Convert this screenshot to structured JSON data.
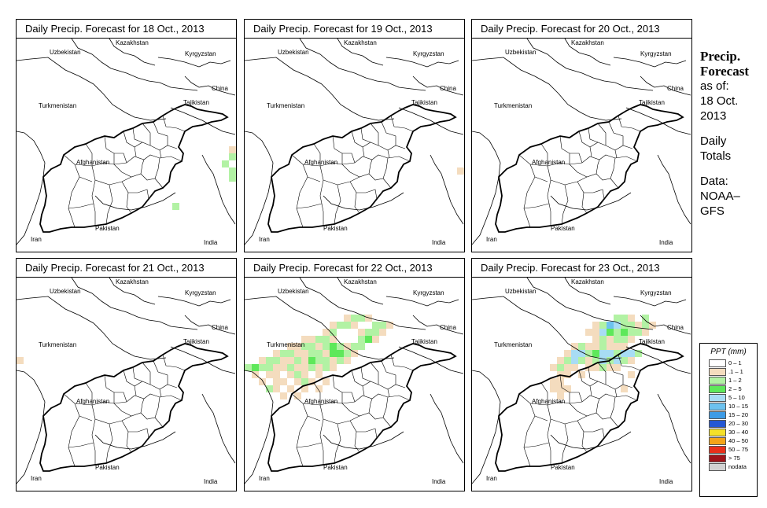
{
  "colors": {
    "c0_1": "#ffffff",
    "c1_1": "#f4dcbe",
    "c1_2": "#b2f2a4",
    "c2_5": "#5ee85a",
    "c5_10": "#a8dcf4",
    "c10_15": "#6cc2ef",
    "c15_20": "#3d9be6",
    "c20_30": "#2457d3",
    "c30_40": "#f4e028",
    "c40_50": "#f4a418",
    "c50_75": "#e8301a",
    "c75": "#a0141a",
    "nodata": "#d2d2d2"
  },
  "countries": [
    "Uzbekistan",
    "Kazakhstan",
    "Kyrgyzstan",
    "China",
    "Turkmenistan",
    "Tajikistan",
    "Afghanistan",
    "Iran",
    "Pakistan",
    "India"
  ],
  "panels": [
    {
      "title": "Daily Precip. Forecast for  18 Oct., 2013",
      "cells": [
        {
          "col": 30,
          "row": 11,
          "c": "c1_1"
        },
        {
          "col": 31,
          "row": 11,
          "c": "c1_2"
        },
        {
          "col": 30,
          "row": 12,
          "c": "c1_2"
        },
        {
          "col": 31,
          "row": 12,
          "c": "c1_1"
        },
        {
          "col": 29,
          "row": 13,
          "c": "c1_2"
        },
        {
          "col": 30,
          "row": 14,
          "c": "c1_2"
        },
        {
          "col": 30,
          "row": 15,
          "c": "c1_2"
        },
        {
          "col": 22,
          "row": 19,
          "c": "c1_2"
        }
      ]
    },
    {
      "title": "Daily Precip. Forecast for  19 Oct., 2013",
      "cells": [
        {
          "col": 30,
          "row": 14,
          "c": "c1_1"
        }
      ]
    },
    {
      "title": "Daily Precip. Forecast for  20 Oct., 2013",
      "cells": []
    },
    {
      "title": "Daily Precip. Forecast for  21 Oct., 2013",
      "cells": [
        {
          "col": 0,
          "row": 7,
          "c": "c1_1"
        }
      ]
    },
    {
      "title": "Daily Precip. Forecast for  22 Oct., 2013",
      "cells": [
        {
          "col": 14,
          "row": 1,
          "c": "c1_1"
        },
        {
          "col": 15,
          "row": 1,
          "c": "c1_2"
        },
        {
          "col": 16,
          "row": 1,
          "c": "c1_2"
        },
        {
          "col": 17,
          "row": 1,
          "c": "c1_1"
        },
        {
          "col": 12,
          "row": 2,
          "c": "c1_1"
        },
        {
          "col": 13,
          "row": 2,
          "c": "c1_2"
        },
        {
          "col": 14,
          "row": 2,
          "c": "c1_2"
        },
        {
          "col": 15,
          "row": 2,
          "c": "c1_1"
        },
        {
          "col": 18,
          "row": 2,
          "c": "c1_2"
        },
        {
          "col": 19,
          "row": 2,
          "c": "c1_2"
        },
        {
          "col": 20,
          "row": 2,
          "c": "c1_1"
        },
        {
          "col": 11,
          "row": 3,
          "c": "c1_1"
        },
        {
          "col": 12,
          "row": 3,
          "c": "c1_2"
        },
        {
          "col": 16,
          "row": 3,
          "c": "c1_1"
        },
        {
          "col": 17,
          "row": 3,
          "c": "c1_2"
        },
        {
          "col": 18,
          "row": 3,
          "c": "c1_2"
        },
        {
          "col": 19,
          "row": 3,
          "c": "c1_1"
        },
        {
          "col": 8,
          "row": 4,
          "c": "c1_1"
        },
        {
          "col": 9,
          "row": 4,
          "c": "c1_1"
        },
        {
          "col": 10,
          "row": 4,
          "c": "c1_2"
        },
        {
          "col": 11,
          "row": 4,
          "c": "c1_2"
        },
        {
          "col": 12,
          "row": 4,
          "c": "c1_1"
        },
        {
          "col": 16,
          "row": 4,
          "c": "c1_2"
        },
        {
          "col": 17,
          "row": 4,
          "c": "c2_5"
        },
        {
          "col": 18,
          "row": 4,
          "c": "c1_1"
        },
        {
          "col": 6,
          "row": 5,
          "c": "c1_1"
        },
        {
          "col": 7,
          "row": 5,
          "c": "c1_1"
        },
        {
          "col": 8,
          "row": 5,
          "c": "c1_2"
        },
        {
          "col": 9,
          "row": 5,
          "c": "c1_2"
        },
        {
          "col": 10,
          "row": 5,
          "c": "c1_1"
        },
        {
          "col": 11,
          "row": 5,
          "c": "c1_2"
        },
        {
          "col": 12,
          "row": 5,
          "c": "c2_5"
        },
        {
          "col": 13,
          "row": 5,
          "c": "c1_2"
        },
        {
          "col": 14,
          "row": 5,
          "c": "c1_1"
        },
        {
          "col": 15,
          "row": 5,
          "c": "c1_2"
        },
        {
          "col": 16,
          "row": 5,
          "c": "c1_2"
        },
        {
          "col": 4,
          "row": 6,
          "c": "c1_1"
        },
        {
          "col": 5,
          "row": 6,
          "c": "c1_2"
        },
        {
          "col": 6,
          "row": 6,
          "c": "c1_2"
        },
        {
          "col": 7,
          "row": 6,
          "c": "c1_1"
        },
        {
          "col": 8,
          "row": 6,
          "c": "c1_1"
        },
        {
          "col": 9,
          "row": 6,
          "c": "c1_2"
        },
        {
          "col": 10,
          "row": 6,
          "c": "c1_2"
        },
        {
          "col": 11,
          "row": 6,
          "c": "c1_1"
        },
        {
          "col": 12,
          "row": 6,
          "c": "c2_5"
        },
        {
          "col": 13,
          "row": 6,
          "c": "c2_5"
        },
        {
          "col": 14,
          "row": 6,
          "c": "c1_2"
        },
        {
          "col": 15,
          "row": 6,
          "c": "c1_1"
        },
        {
          "col": 2,
          "row": 7,
          "c": "c1_1"
        },
        {
          "col": 3,
          "row": 7,
          "c": "c1_2"
        },
        {
          "col": 4,
          "row": 7,
          "c": "c1_2"
        },
        {
          "col": 5,
          "row": 7,
          "c": "c1_1"
        },
        {
          "col": 6,
          "row": 7,
          "c": "c1_1"
        },
        {
          "col": 7,
          "row": 7,
          "c": "c1_2"
        },
        {
          "col": 8,
          "row": 7,
          "c": "c1_1"
        },
        {
          "col": 9,
          "row": 7,
          "c": "c2_5"
        },
        {
          "col": 10,
          "row": 7,
          "c": "c1_2"
        },
        {
          "col": 11,
          "row": 7,
          "c": "c1_2"
        },
        {
          "col": 12,
          "row": 7,
          "c": "c1_1"
        },
        {
          "col": 13,
          "row": 7,
          "c": "c1_2"
        },
        {
          "col": 14,
          "row": 7,
          "c": "c1_1"
        },
        {
          "col": 0,
          "row": 8,
          "c": "c1_2"
        },
        {
          "col": 1,
          "row": 8,
          "c": "c2_5"
        },
        {
          "col": 2,
          "row": 8,
          "c": "c1_2"
        },
        {
          "col": 3,
          "row": 8,
          "c": "c1_2"
        },
        {
          "col": 4,
          "row": 8,
          "c": "c1_1"
        },
        {
          "col": 5,
          "row": 8,
          "c": "c1_1"
        },
        {
          "col": 6,
          "row": 8,
          "c": "c1_2"
        },
        {
          "col": 7,
          "row": 8,
          "c": "c1_1"
        },
        {
          "col": 8,
          "row": 8,
          "c": "c1_1"
        },
        {
          "col": 9,
          "row": 8,
          "c": "c1_2"
        },
        {
          "col": 10,
          "row": 8,
          "c": "c1_1"
        },
        {
          "col": 11,
          "row": 8,
          "c": "c1_2"
        },
        {
          "col": 12,
          "row": 8,
          "c": "c1_1"
        },
        {
          "col": 1,
          "row": 9,
          "c": "c1_1"
        },
        {
          "col": 3,
          "row": 9,
          "c": "c1_1"
        },
        {
          "col": 4,
          "row": 9,
          "c": "c1_1"
        },
        {
          "col": 6,
          "row": 9,
          "c": "c1_1"
        },
        {
          "col": 7,
          "row": 9,
          "c": "c1_2"
        },
        {
          "col": 8,
          "row": 9,
          "c": "c1_1"
        },
        {
          "col": 10,
          "row": 9,
          "c": "c1_1"
        },
        {
          "col": 2,
          "row": 10,
          "c": "c1_1"
        },
        {
          "col": 4,
          "row": 10,
          "c": "c1_1"
        },
        {
          "col": 5,
          "row": 10,
          "c": "c1_1"
        },
        {
          "col": 7,
          "row": 10,
          "c": "c1_1"
        },
        {
          "col": 8,
          "row": 10,
          "c": "c1_2"
        },
        {
          "col": 9,
          "row": 10,
          "c": "c1_1"
        },
        {
          "col": 11,
          "row": 10,
          "c": "c1_1"
        },
        {
          "col": 3,
          "row": 11,
          "c": "c1_2"
        },
        {
          "col": 4,
          "row": 11,
          "c": "c1_1"
        },
        {
          "col": 6,
          "row": 11,
          "c": "c1_1"
        },
        {
          "col": 8,
          "row": 11,
          "c": "c1_1"
        },
        {
          "col": 10,
          "row": 11,
          "c": "c1_1"
        },
        {
          "col": 5,
          "row": 12,
          "c": "c1_1"
        },
        {
          "col": 7,
          "row": 12,
          "c": "c1_1"
        }
      ]
    },
    {
      "title": "Daily Precip. Forecast for  23 Oct., 2013",
      "cells": [
        {
          "col": 20,
          "row": 1,
          "c": "c1_2"
        },
        {
          "col": 21,
          "row": 1,
          "c": "c1_2"
        },
        {
          "col": 22,
          "row": 1,
          "c": "c1_1"
        },
        {
          "col": 24,
          "row": 1,
          "c": "c1_2"
        },
        {
          "col": 17,
          "row": 2,
          "c": "c1_1"
        },
        {
          "col": 18,
          "row": 2,
          "c": "c1_2"
        },
        {
          "col": 19,
          "row": 2,
          "c": "c10_15"
        },
        {
          "col": 20,
          "row": 2,
          "c": "c5_10"
        },
        {
          "col": 21,
          "row": 2,
          "c": "c1_2"
        },
        {
          "col": 22,
          "row": 2,
          "c": "c1_2"
        },
        {
          "col": 23,
          "row": 2,
          "c": "c1_1"
        },
        {
          "col": 24,
          "row": 2,
          "c": "c1_2"
        },
        {
          "col": 25,
          "row": 2,
          "c": "c1_1"
        },
        {
          "col": 16,
          "row": 3,
          "c": "c1_1"
        },
        {
          "col": 17,
          "row": 3,
          "c": "c1_1"
        },
        {
          "col": 18,
          "row": 3,
          "c": "c5_10"
        },
        {
          "col": 19,
          "row": 3,
          "c": "c2_5"
        },
        {
          "col": 20,
          "row": 3,
          "c": "c1_2"
        },
        {
          "col": 21,
          "row": 3,
          "c": "c2_5"
        },
        {
          "col": 22,
          "row": 3,
          "c": "c1_2"
        },
        {
          "col": 23,
          "row": 3,
          "c": "c1_2"
        },
        {
          "col": 24,
          "row": 3,
          "c": "c1_1"
        },
        {
          "col": 17,
          "row": 4,
          "c": "c1_1"
        },
        {
          "col": 18,
          "row": 4,
          "c": "c1_2"
        },
        {
          "col": 19,
          "row": 4,
          "c": "c1_1"
        },
        {
          "col": 20,
          "row": 4,
          "c": "c1_2"
        },
        {
          "col": 21,
          "row": 4,
          "c": "c1_2"
        },
        {
          "col": 22,
          "row": 4,
          "c": "c1_1"
        },
        {
          "col": 14,
          "row": 5,
          "c": "c1_1"
        },
        {
          "col": 15,
          "row": 5,
          "c": "c1_2"
        },
        {
          "col": 16,
          "row": 5,
          "c": "c1_1"
        },
        {
          "col": 17,
          "row": 5,
          "c": "c1_1"
        },
        {
          "col": 18,
          "row": 5,
          "c": "c1_2"
        },
        {
          "col": 19,
          "row": 5,
          "c": "c1_1"
        },
        {
          "col": 20,
          "row": 5,
          "c": "c1_1"
        },
        {
          "col": 21,
          "row": 5,
          "c": "c1_1"
        },
        {
          "col": 13,
          "row": 6,
          "c": "c1_1"
        },
        {
          "col": 14,
          "row": 6,
          "c": "c5_10"
        },
        {
          "col": 15,
          "row": 6,
          "c": "c5_10"
        },
        {
          "col": 16,
          "row": 6,
          "c": "c1_2"
        },
        {
          "col": 17,
          "row": 6,
          "c": "c2_5"
        },
        {
          "col": 18,
          "row": 6,
          "c": "c5_10"
        },
        {
          "col": 19,
          "row": 6,
          "c": "c5_10"
        },
        {
          "col": 20,
          "row": 6,
          "c": "c1_2"
        },
        {
          "col": 21,
          "row": 6,
          "c": "c5_10"
        },
        {
          "col": 22,
          "row": 6,
          "c": "c5_10"
        },
        {
          "col": 23,
          "row": 6,
          "c": "c1_2"
        },
        {
          "col": 12,
          "row": 7,
          "c": "c1_1"
        },
        {
          "col": 13,
          "row": 7,
          "c": "c1_2"
        },
        {
          "col": 14,
          "row": 7,
          "c": "c5_10"
        },
        {
          "col": 15,
          "row": 7,
          "c": "c1_2"
        },
        {
          "col": 16,
          "row": 7,
          "c": "c1_1"
        },
        {
          "col": 17,
          "row": 7,
          "c": "c1_2"
        },
        {
          "col": 18,
          "row": 7,
          "c": "c5_10"
        },
        {
          "col": 19,
          "row": 7,
          "c": "c1_2"
        },
        {
          "col": 20,
          "row": 7,
          "c": "c5_10"
        },
        {
          "col": 21,
          "row": 7,
          "c": "c1_2"
        },
        {
          "col": 22,
          "row": 7,
          "c": "c1_1"
        },
        {
          "col": 11,
          "row": 8,
          "c": "c1_1"
        },
        {
          "col": 12,
          "row": 8,
          "c": "c1_2"
        },
        {
          "col": 13,
          "row": 8,
          "c": "c1_1"
        },
        {
          "col": 14,
          "row": 8,
          "c": "c1_1"
        },
        {
          "col": 16,
          "row": 8,
          "c": "c1_1"
        },
        {
          "col": 17,
          "row": 8,
          "c": "c1_1"
        },
        {
          "col": 18,
          "row": 8,
          "c": "c1_2"
        },
        {
          "col": 19,
          "row": 8,
          "c": "c1_1"
        },
        {
          "col": 20,
          "row": 8,
          "c": "c1_1"
        },
        {
          "col": 12,
          "row": 9,
          "c": "c1_1"
        },
        {
          "col": 13,
          "row": 9,
          "c": "c1_1"
        },
        {
          "col": 15,
          "row": 9,
          "c": "c1_1"
        },
        {
          "col": 22,
          "row": 9,
          "c": "c1_1"
        },
        {
          "col": 11,
          "row": 10,
          "c": "c1_1"
        },
        {
          "col": 12,
          "row": 10,
          "c": "c1_1"
        },
        {
          "col": 11,
          "row": 11,
          "c": "c1_1"
        },
        {
          "col": 12,
          "row": 11,
          "c": "c1_1"
        },
        {
          "col": 13,
          "row": 11,
          "c": "c1_1"
        },
        {
          "col": 12,
          "row": 12,
          "c": "c1_1"
        },
        {
          "col": 21,
          "row": 11,
          "c": "c1_1"
        }
      ]
    }
  ],
  "side": {
    "title_line1": "Precip.",
    "title_line2": "Forecast",
    "asof_label": "as of:",
    "asof_date": "18 Oct.",
    "asof_year": "2013",
    "daily": "Daily",
    "totals": "Totals",
    "data_label": "Data:",
    "source1": "NOAA–",
    "source2": "GFS"
  },
  "legend": {
    "title": "PPT (mm)",
    "items": [
      {
        "label": "0 – 1",
        "color": "c0_1"
      },
      {
        "label": ".1 – 1",
        "color": "c1_1"
      },
      {
        "label": "1 – 2",
        "color": "c1_2"
      },
      {
        "label": "2 – 5",
        "color": "c2_5"
      },
      {
        "label": "5 – 10",
        "color": "c5_10"
      },
      {
        "label": "10 – 15",
        "color": "c10_15"
      },
      {
        "label": "15 – 20",
        "color": "c15_20"
      },
      {
        "label": "20 – 30",
        "color": "c20_30"
      },
      {
        "label": "30 – 40",
        "color": "c30_40"
      },
      {
        "label": "40 – 50",
        "color": "c40_50"
      },
      {
        "label": "50 – 75",
        "color": "c50_75"
      },
      {
        "label": "> 75",
        "color": "c75"
      },
      {
        "label": "nodata",
        "color": "nodata"
      }
    ]
  }
}
